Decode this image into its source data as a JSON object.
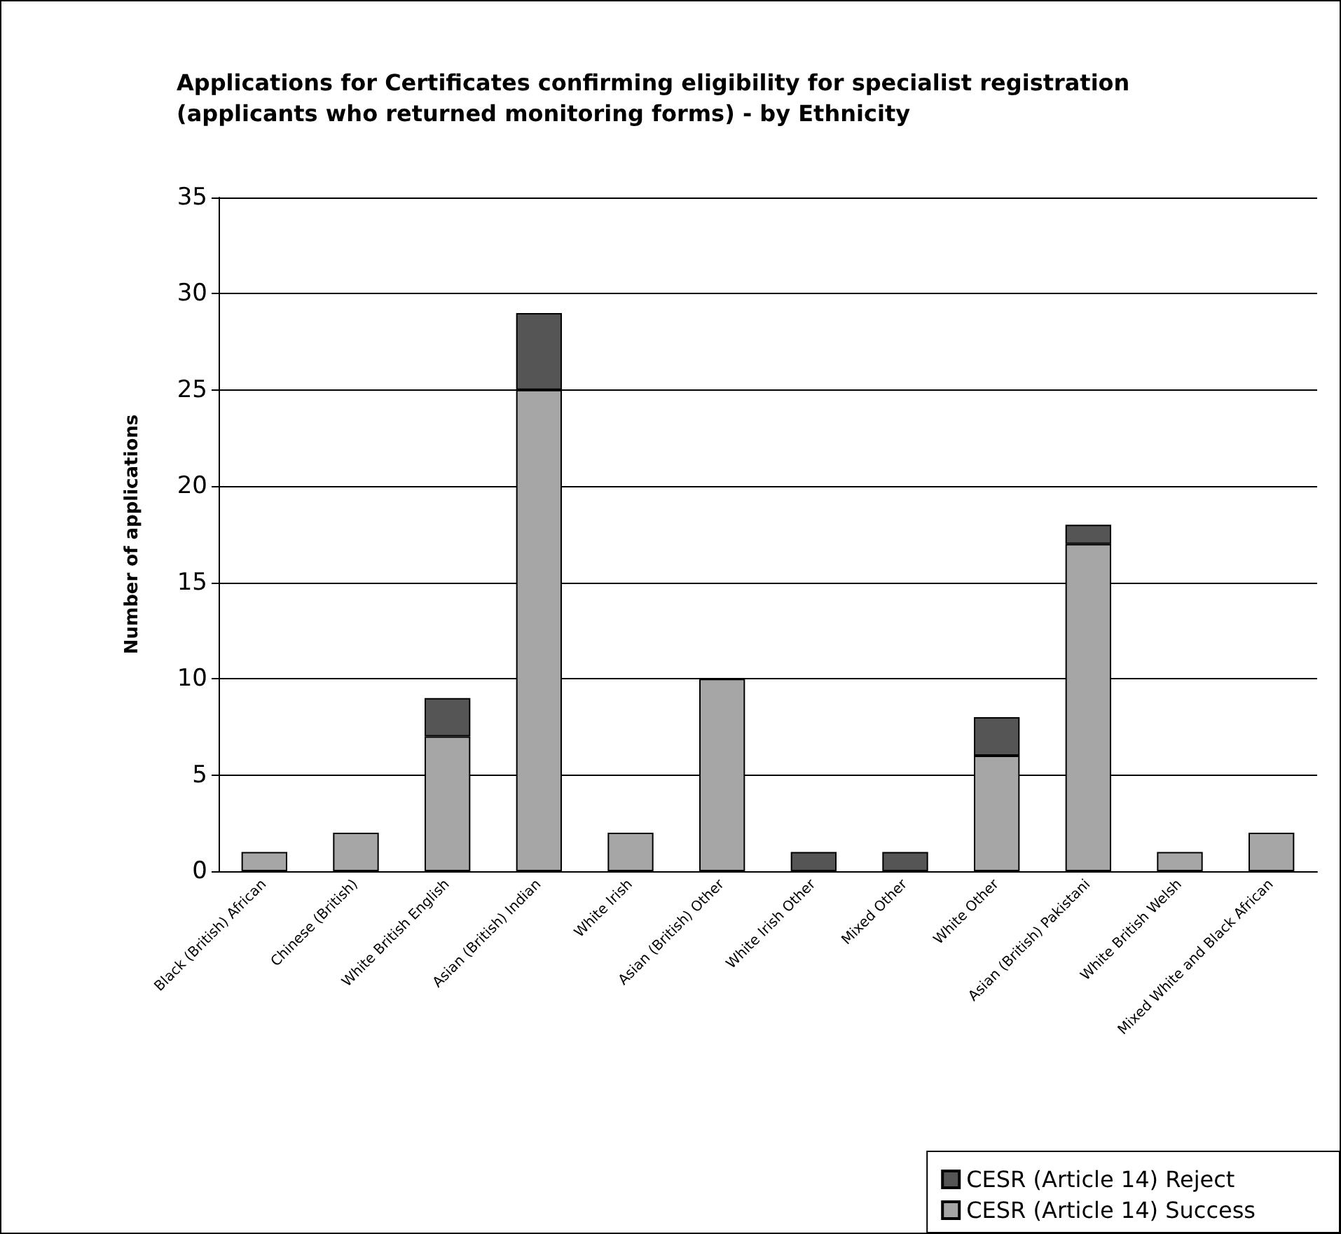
{
  "chart_data": {
    "type": "bar",
    "title": "Applications for Certificates confirming eligibility for specialist registration (applicants who returned monitoring forms) - by Ethnicity",
    "ylabel": "Number of applications",
    "categories": [
      "Black (British) African",
      "Chinese (British)",
      "White British English",
      "Asian (British) Indian",
      "White Irish",
      "Asian (British) Other",
      "White Irish Other",
      "Mixed Other",
      "White Other",
      "Asian (British) Pakistani",
      "White British Welsh",
      "Mixed White and Black African"
    ],
    "series": [
      {
        "name": "CESR (Article 14) Success",
        "color": "#a6a6a6",
        "values": [
          1,
          2,
          7,
          25,
          2,
          10,
          0,
          0,
          6,
          17,
          1,
          2
        ]
      },
      {
        "name": "CESR (Article 14) Reject",
        "color": "#555555",
        "values": [
          0,
          0,
          2,
          4,
          0,
          0,
          1,
          1,
          2,
          1,
          0,
          0
        ]
      }
    ],
    "stacked": true,
    "ylim": [
      0,
      35
    ],
    "yticks": [
      0,
      5,
      10,
      15,
      20,
      25,
      30,
      35
    ],
    "grid": "y",
    "legend": "bottom right"
  }
}
